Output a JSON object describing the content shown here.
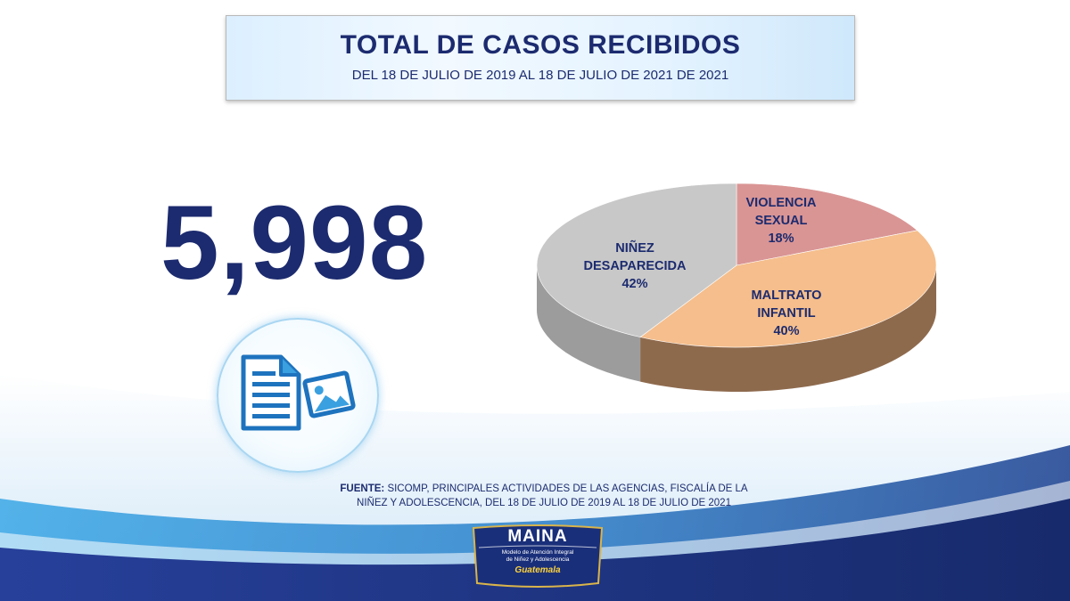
{
  "header": {
    "title": "TOTAL DE CASOS RECIBIDOS",
    "subtitle": "DEL 18 DE JULIO  DE 2019 AL 18 DE JULIO  DE 2021 DE 2021"
  },
  "total": {
    "value": "5,998"
  },
  "icons": {
    "document": "document-icon",
    "image": "image-icon"
  },
  "chart_data": {
    "type": "pie",
    "title": "",
    "style": "3d",
    "slices": [
      {
        "label_line1": "VIOLENCIA",
        "label_line2": "SEXUAL",
        "value": 18,
        "pct_label": "18%",
        "color": "#d99594"
      },
      {
        "label_line1": "MALTRATO",
        "label_line2": "INFANTIL",
        "value": 40,
        "pct_label": "40%",
        "color": "#f5be8c"
      },
      {
        "label_line1": "NIÑEZ",
        "label_line2": "DESAPARECIDA",
        "value": 42,
        "pct_label": "42%",
        "color": "#c8c8c8"
      }
    ],
    "side_colors": [
      "#b27270",
      "#8e6a4d",
      "#9c9c9c"
    ]
  },
  "source": {
    "label": "FUENTE:",
    "line1": " SICOMP, PRINCIPALES ACTIVIDADES DE LAS AGENCIAS, FISCALÍA DE LA",
    "line2": "NIÑEZ Y ADOLESCENCIA, DEL 18 DE JULIO DE 2019 AL 18 DE JULIO DE 2021"
  },
  "logo": {
    "name": "MAINA",
    "tagline_line1": "Modelo de Atención Integral",
    "tagline_line2": "de Niñez y Adolescencia",
    "country": "Guatemala"
  },
  "colors": {
    "navy": "#1c2b6f",
    "accent_blue": "#3aa0e0"
  }
}
